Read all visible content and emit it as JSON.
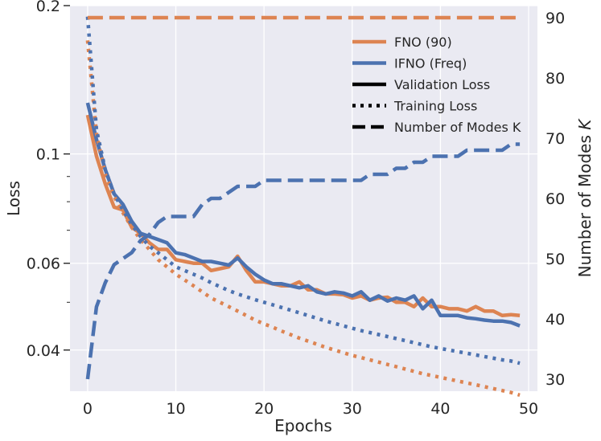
{
  "chart_data": {
    "type": "line",
    "title": "",
    "xlabel": "Epochs",
    "ylabel_left": "Loss",
    "ylabel_right_main": "Number of Modes ",
    "ylabel_right_italic": "K",
    "xlim": [
      -2,
      51
    ],
    "ylim_left": [
      0.033,
      0.2
    ],
    "ylim_left_scale": "log",
    "ylim_right": [
      28,
      92
    ],
    "x_ticks": [
      0,
      10,
      20,
      30,
      40,
      50
    ],
    "y_left_ticks": [
      {
        "value": 0.04,
        "label": "0.04"
      },
      {
        "value": 0.06,
        "label": "0.06"
      },
      {
        "value": 0.1,
        "label": "0.1"
      },
      {
        "value": 0.2,
        "label": "0.2"
      }
    ],
    "y_left_minor_ticks": [
      0.05,
      0.07,
      0.08,
      0.09
    ],
    "y_right_ticks": [
      30,
      40,
      50,
      60,
      70,
      80,
      90
    ],
    "grid": true,
    "legend": {
      "placement": "top-right",
      "entries": [
        {
          "label": "FNO (90)",
          "color": "#dd8452",
          "style": "solid"
        },
        {
          "label": "IFNO (Freq)",
          "color": "#4c72b0",
          "style": "solid"
        },
        {
          "label": "Validation Loss",
          "color": "#000000",
          "style": "solid"
        },
        {
          "label": "Training Loss",
          "color": "#000000",
          "style": "dotted"
        },
        {
          "label": "Number of Modes K",
          "color": "#000000",
          "style": "dashed"
        }
      ]
    },
    "colors": {
      "fno": "#dd8452",
      "ifno": "#4c72b0",
      "background": "#eaeaf2",
      "grid": "#ffffff"
    },
    "x": [
      0,
      1,
      2,
      3,
      4,
      5,
      6,
      7,
      8,
      9,
      10,
      11,
      12,
      13,
      14,
      15,
      16,
      17,
      18,
      19,
      20,
      21,
      22,
      23,
      24,
      25,
      26,
      27,
      28,
      29,
      30,
      31,
      32,
      33,
      34,
      35,
      36,
      37,
      38,
      39,
      40,
      41,
      42,
      43,
      44,
      45,
      46,
      47,
      48,
      49
    ],
    "series": [
      {
        "name": "FNO (90)",
        "metric": "validation",
        "axis": "left",
        "color": "#dd8452",
        "style": "solid",
        "values": [
          0.12,
          0.099,
          0.087,
          0.078,
          0.077,
          0.071,
          0.069,
          0.066,
          0.064,
          0.064,
          0.061,
          0.0605,
          0.06,
          0.06,
          0.058,
          0.0585,
          0.059,
          0.062,
          0.058,
          0.055,
          0.055,
          0.0545,
          0.054,
          0.054,
          0.055,
          0.053,
          0.053,
          0.052,
          0.052,
          0.0518,
          0.051,
          0.0515,
          0.0505,
          0.051,
          0.0512,
          0.05,
          0.05,
          0.049,
          0.051,
          0.049,
          0.049,
          0.0485,
          0.0485,
          0.048,
          0.049,
          0.048,
          0.048,
          0.047,
          0.0472,
          0.047
        ]
      },
      {
        "name": "IFNO (Freq)",
        "metric": "validation",
        "axis": "left",
        "color": "#4c72b0",
        "style": "solid",
        "values": [
          0.127,
          0.107,
          0.093,
          0.083,
          0.079,
          0.073,
          0.069,
          0.068,
          0.067,
          0.066,
          0.063,
          0.0625,
          0.0615,
          0.0605,
          0.0605,
          0.06,
          0.0595,
          0.0615,
          0.059,
          0.057,
          0.0555,
          0.0545,
          0.0545,
          0.054,
          0.0535,
          0.054,
          0.0525,
          0.052,
          0.0525,
          0.0522,
          0.0515,
          0.0525,
          0.0505,
          0.0515,
          0.0503,
          0.051,
          0.0505,
          0.0515,
          0.0485,
          0.0505,
          0.047,
          0.047,
          0.047,
          0.0465,
          0.0463,
          0.046,
          0.0458,
          0.0458,
          0.0455,
          0.0448
        ]
      },
      {
        "name": "FNO (90)",
        "metric": "training",
        "axis": "left",
        "color": "#dd8452",
        "style": "dotted",
        "values": [
          0.17,
          0.11,
          0.091,
          0.082,
          0.076,
          0.071,
          0.067,
          0.064,
          0.061,
          0.059,
          0.057,
          0.0555,
          0.054,
          0.0525,
          0.051,
          0.05,
          0.049,
          0.048,
          0.047,
          0.046,
          0.0452,
          0.0445,
          0.0437,
          0.043,
          0.0423,
          0.0417,
          0.0411,
          0.0405,
          0.04,
          0.0395,
          0.039,
          0.0386,
          0.0382,
          0.0378,
          0.0374,
          0.037,
          0.0366,
          0.0362,
          0.0358,
          0.0355,
          0.0352,
          0.0349,
          0.0346,
          0.0343,
          0.034,
          0.0337,
          0.0334,
          0.0331,
          0.0328,
          0.0324
        ]
      },
      {
        "name": "IFNO (Freq)",
        "metric": "training",
        "axis": "left",
        "color": "#4c72b0",
        "style": "dotted",
        "values": [
          0.19,
          0.112,
          0.093,
          0.083,
          0.077,
          0.072,
          0.068,
          0.065,
          0.063,
          0.061,
          0.059,
          0.058,
          0.057,
          0.056,
          0.0548,
          0.0538,
          0.0528,
          0.052,
          0.0513,
          0.0506,
          0.05,
          0.0494,
          0.0488,
          0.0482,
          0.0476,
          0.047,
          0.0464,
          0.0458,
          0.0453,
          0.0448,
          0.0443,
          0.0438,
          0.0434,
          0.043,
          0.0426,
          0.0422,
          0.0418,
          0.0414,
          0.041,
          0.0406,
          0.0403,
          0.04,
          0.0397,
          0.0394,
          0.0391,
          0.0388,
          0.0385,
          0.0382,
          0.038,
          0.0376
        ]
      },
      {
        "name": "FNO (90)",
        "metric": "modes",
        "axis": "right",
        "color": "#dd8452",
        "style": "dashed",
        "values": [
          90,
          90,
          90,
          90,
          90,
          90,
          90,
          90,
          90,
          90,
          90,
          90,
          90,
          90,
          90,
          90,
          90,
          90,
          90,
          90,
          90,
          90,
          90,
          90,
          90,
          90,
          90,
          90,
          90,
          90,
          90,
          90,
          90,
          90,
          90,
          90,
          90,
          90,
          90,
          90,
          90,
          90,
          90,
          90,
          90,
          90,
          90,
          90,
          90,
          90
        ]
      },
      {
        "name": "IFNO (Freq)",
        "metric": "modes",
        "axis": "right",
        "color": "#4c72b0",
        "style": "dashed",
        "values": [
          30,
          42,
          46,
          49,
          50,
          51,
          53,
          54,
          56,
          57,
          57,
          57,
          57,
          59,
          60,
          60,
          61,
          62,
          62,
          62,
          63,
          63,
          63,
          63,
          63,
          63,
          63,
          63,
          63,
          63,
          63,
          63,
          64,
          64,
          64,
          65,
          65,
          66,
          66,
          67,
          67,
          67,
          67,
          68,
          68,
          68,
          68,
          68,
          69,
          69
        ]
      }
    ]
  }
}
